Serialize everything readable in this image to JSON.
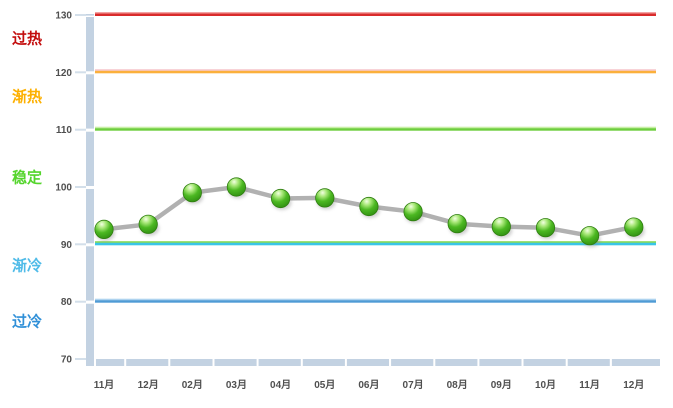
{
  "chart_data": {
    "type": "line",
    "title": "",
    "xlabel": "",
    "ylabel": "",
    "categories": [
      "11月",
      "12月",
      "02月",
      "03月",
      "04月",
      "05月",
      "06月",
      "07月",
      "08月",
      "09月",
      "10月",
      "11月",
      "12月"
    ],
    "series": [
      {
        "name": "index-line",
        "values": [
          92.6,
          93.5,
          99.0,
          100.0,
          98.0,
          98.1,
          96.6,
          95.7,
          93.6,
          93.1,
          92.9,
          91.5,
          93.0
        ],
        "line_color": "#b1b1b1",
        "marker_color": "#46b41e"
      }
    ],
    "ylim": [
      70,
      130
    ],
    "yticks": [
      130,
      120,
      110,
      100,
      90,
      80,
      70
    ],
    "grid": false,
    "legend": "none",
    "threshold_lines": [
      {
        "value": 130,
        "color": "#d92b2b",
        "edge": "#f2a3a3"
      },
      {
        "value": 120,
        "color": "#fbb03b",
        "edge": "#f6c0c6"
      },
      {
        "value": 110,
        "color": "#6dce3c",
        "edge": "#c9efa5"
      },
      {
        "value": 90,
        "color": "#39c5e8",
        "edge": "#74d23f"
      },
      {
        "value": 80,
        "color": "#4f9bd5",
        "edge": "#aed3ef"
      }
    ],
    "zone_labels": [
      {
        "text": "过热",
        "color": "#c30d0d",
        "value": 125.9
      },
      {
        "text": "渐热",
        "color": "#fdb001",
        "value": 115.8
      },
      {
        "text": "稳定",
        "color": "#54d52c",
        "value": 101.7
      },
      {
        "text": "渐冷",
        "color": "#4fbbe8",
        "value": 86.3
      },
      {
        "text": "过冷",
        "color": "#3090d8",
        "value": 76.5
      }
    ],
    "axis_color": "#c3d2e2",
    "tick_stub_color": "#d3dfea"
  }
}
